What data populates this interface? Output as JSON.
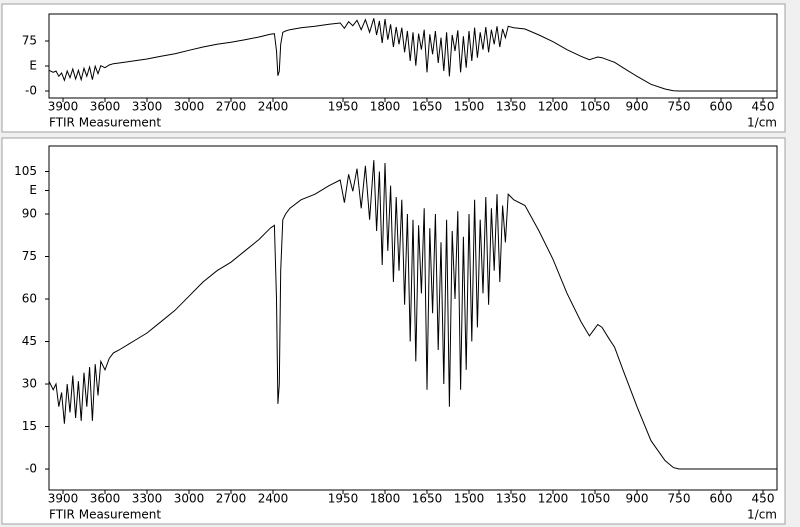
{
  "chart_data": [
    {
      "type": "line",
      "xlabel": "FTIR Measurement",
      "xunit": "1/cm",
      "color": "#000000",
      "xlim": [
        4000,
        400
      ],
      "x_scale_break": 2000,
      "xticks": [
        3900,
        3600,
        3300,
        3000,
        2700,
        2400,
        1950,
        1800,
        1650,
        1500,
        1350,
        1200,
        1050,
        900,
        750,
        600,
        450
      ],
      "ylim": [
        -10.5,
        115.5
      ],
      "yticks": [
        {
          "value": 0,
          "label": "-0"
        },
        {
          "value": 37.5,
          "label": "E"
        },
        75
      ],
      "x": [
        4000,
        3970,
        3950,
        3930,
        3910,
        3890,
        3870,
        3850,
        3830,
        3810,
        3790,
        3770,
        3750,
        3730,
        3710,
        3690,
        3670,
        3650,
        3630,
        3600,
        3570,
        3540,
        3500,
        3400,
        3300,
        3200,
        3100,
        3000,
        2900,
        2800,
        2700,
        2600,
        2500,
        2420,
        2390,
        2375,
        2365,
        2355,
        2345,
        2330,
        2310,
        2280,
        2200,
        2100,
        2000,
        1960,
        1945,
        1930,
        1915,
        1900,
        1885,
        1870,
        1855,
        1840,
        1830,
        1820,
        1810,
        1800,
        1790,
        1780,
        1770,
        1760,
        1750,
        1740,
        1730,
        1720,
        1710,
        1700,
        1690,
        1680,
        1670,
        1660,
        1650,
        1640,
        1630,
        1620,
        1610,
        1600,
        1590,
        1580,
        1570,
        1560,
        1550,
        1540,
        1530,
        1520,
        1510,
        1500,
        1490,
        1480,
        1470,
        1460,
        1450,
        1440,
        1430,
        1420,
        1410,
        1400,
        1390,
        1380,
        1370,
        1360,
        1340,
        1300,
        1250,
        1200,
        1150,
        1100,
        1070,
        1055,
        1040,
        1025,
        1000,
        980,
        950,
        900,
        850,
        800,
        770,
        750,
        700,
        600,
        500,
        400
      ],
      "values": [
        31,
        28,
        30,
        22,
        27,
        16,
        30,
        20,
        33,
        18,
        31,
        17,
        34,
        22,
        36,
        17,
        37,
        26,
        38,
        35,
        39,
        41,
        42,
        45,
        48,
        52,
        56,
        61,
        66,
        70,
        73,
        77,
        81,
        85,
        86,
        60,
        23,
        30,
        70,
        88,
        90,
        92,
        95,
        97,
        100,
        102,
        94,
        104,
        98,
        106,
        92,
        107,
        88,
        109,
        84,
        105,
        72,
        108,
        77,
        100,
        66,
        96,
        70,
        95,
        58,
        90,
        45,
        88,
        38,
        86,
        62,
        92,
        28,
        85,
        55,
        90,
        42,
        80,
        30,
        88,
        22,
        84,
        60,
        91,
        28,
        82,
        35,
        90,
        45,
        95,
        50,
        88,
        62,
        96,
        58,
        92,
        70,
        97,
        66,
        93,
        80,
        97,
        95,
        93,
        84,
        74,
        62,
        52,
        47,
        49,
        51,
        50,
        46,
        43,
        35,
        22,
        10,
        3,
        0.5,
        0,
        0,
        0,
        0,
        0
      ]
    },
    {
      "type": "line",
      "xlabel": "FTIR Measurement",
      "xunit": "1/cm",
      "color": "#000000",
      "xlim": [
        4000,
        400
      ],
      "x_scale_break": 2000,
      "xticks": [
        3900,
        3600,
        3300,
        3000,
        2700,
        2400,
        1950,
        1800,
        1650,
        1500,
        1350,
        1200,
        1050,
        900,
        750,
        600,
        450
      ],
      "ylim": [
        -7.4,
        114
      ],
      "yticks": [
        {
          "value": 0,
          "label": "-0"
        },
        15,
        30,
        45,
        60,
        75,
        90,
        {
          "value": 98.3,
          "label": "E"
        },
        105
      ],
      "x": [
        4000,
        3970,
        3950,
        3930,
        3910,
        3890,
        3870,
        3850,
        3830,
        3810,
        3790,
        3770,
        3750,
        3730,
        3710,
        3690,
        3670,
        3650,
        3630,
        3600,
        3570,
        3540,
        3500,
        3400,
        3300,
        3200,
        3100,
        3000,
        2900,
        2800,
        2700,
        2600,
        2500,
        2420,
        2390,
        2375,
        2365,
        2355,
        2345,
        2330,
        2310,
        2280,
        2200,
        2100,
        2000,
        1960,
        1945,
        1930,
        1915,
        1900,
        1885,
        1870,
        1855,
        1840,
        1830,
        1820,
        1810,
        1800,
        1790,
        1780,
        1770,
        1760,
        1750,
        1740,
        1730,
        1720,
        1710,
        1700,
        1690,
        1680,
        1670,
        1660,
        1650,
        1640,
        1630,
        1620,
        1610,
        1600,
        1590,
        1580,
        1570,
        1560,
        1550,
        1540,
        1530,
        1520,
        1510,
        1500,
        1490,
        1480,
        1470,
        1460,
        1450,
        1440,
        1430,
        1420,
        1410,
        1400,
        1390,
        1380,
        1370,
        1360,
        1340,
        1300,
        1250,
        1200,
        1150,
        1100,
        1070,
        1055,
        1040,
        1025,
        1000,
        980,
        950,
        900,
        850,
        800,
        770,
        750,
        700,
        600,
        500,
        400
      ],
      "values": [
        31,
        28,
        30,
        22,
        27,
        16,
        30,
        20,
        33,
        18,
        31,
        17,
        34,
        22,
        36,
        17,
        37,
        26,
        38,
        35,
        39,
        41,
        42,
        45,
        48,
        52,
        56,
        61,
        66,
        70,
        73,
        77,
        81,
        85,
        86,
        60,
        23,
        30,
        70,
        88,
        90,
        92,
        95,
        97,
        100,
        102,
        94,
        104,
        98,
        106,
        92,
        107,
        88,
        109,
        84,
        105,
        72,
        108,
        77,
        100,
        66,
        96,
        70,
        95,
        58,
        90,
        45,
        88,
        38,
        86,
        62,
        92,
        28,
        85,
        55,
        90,
        42,
        80,
        30,
        88,
        22,
        84,
        60,
        91,
        28,
        82,
        35,
        90,
        45,
        95,
        50,
        88,
        62,
        96,
        58,
        92,
        70,
        97,
        66,
        93,
        80,
        97,
        95,
        93,
        84,
        74,
        62,
        52,
        47,
        49,
        51,
        50,
        46,
        43,
        35,
        22,
        10,
        3,
        0.5,
        0,
        0,
        0,
        0,
        0
      ]
    }
  ]
}
